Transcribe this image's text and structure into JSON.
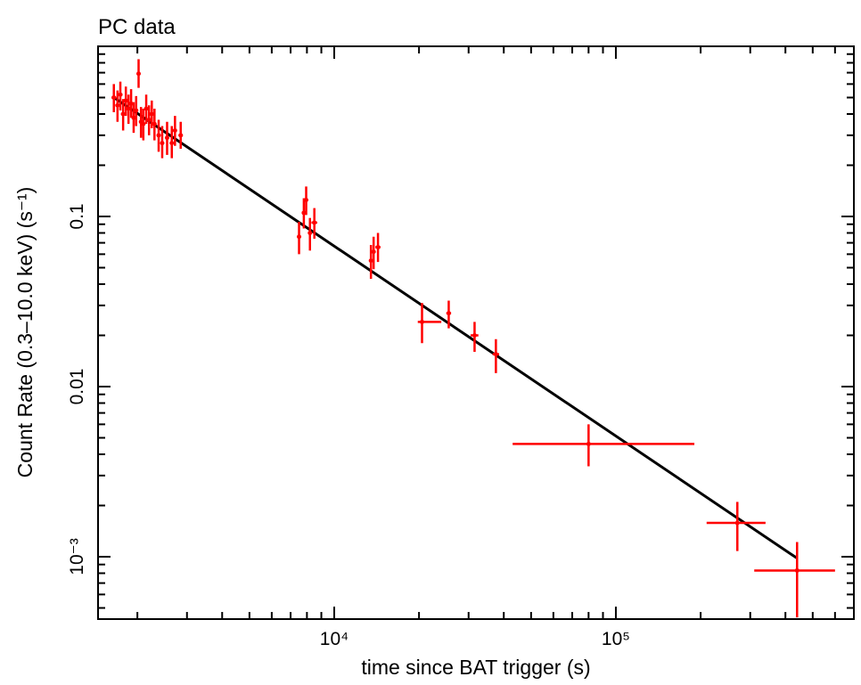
{
  "chart_data": {
    "type": "scatter",
    "title": "PC data",
    "xlabel": "time since BAT trigger (s)",
    "ylabel": "Count Rate (0.3–10.0 keV) (s⁻¹)",
    "x_scale": "log",
    "y_scale": "log",
    "xlim": [
      1450,
      700000
    ],
    "ylim": [
      0.00043,
      1.0
    ],
    "x_tick_labels": [
      {
        "value": 10000,
        "label": "10⁴"
      },
      {
        "value": 100000,
        "label": "10⁵"
      }
    ],
    "y_tick_labels": [
      {
        "value": 0.001,
        "label": "10⁻³"
      },
      {
        "value": 0.01,
        "label": "0.01"
      },
      {
        "value": 0.1,
        "label": "0.1"
      }
    ],
    "grid": false,
    "colors": {
      "data": "#ff0000",
      "model": "#000000",
      "axes": "#000000"
    },
    "series": [
      {
        "values": [
          {
            "x": 1650,
            "y": 0.5,
            "xlo": 1620,
            "xhi": 1680,
            "ylo": 0.41,
            "yhi": 0.6
          },
          {
            "x": 1700,
            "y": 0.45,
            "xlo": 1670,
            "xhi": 1730,
            "ylo": 0.36,
            "yhi": 0.55
          },
          {
            "x": 1740,
            "y": 0.52,
            "xlo": 1710,
            "xhi": 1770,
            "ylo": 0.42,
            "yhi": 0.62
          },
          {
            "x": 1780,
            "y": 0.4,
            "xlo": 1750,
            "xhi": 1810,
            "ylo": 0.32,
            "yhi": 0.49
          },
          {
            "x": 1820,
            "y": 0.48,
            "xlo": 1790,
            "xhi": 1850,
            "ylo": 0.39,
            "yhi": 0.58
          },
          {
            "x": 1860,
            "y": 0.43,
            "xlo": 1830,
            "xhi": 1890,
            "ylo": 0.35,
            "yhi": 0.52
          },
          {
            "x": 1900,
            "y": 0.46,
            "xlo": 1870,
            "xhi": 1930,
            "ylo": 0.38,
            "yhi": 0.56
          },
          {
            "x": 1940,
            "y": 0.38,
            "xlo": 1910,
            "xhi": 1970,
            "ylo": 0.31,
            "yhi": 0.47
          },
          {
            "x": 1980,
            "y": 0.42,
            "xlo": 1950,
            "xhi": 2010,
            "ylo": 0.34,
            "yhi": 0.51
          },
          {
            "x": 2020,
            "y": 0.69,
            "xlo": 1995,
            "xhi": 2045,
            "ylo": 0.57,
            "yhi": 0.84
          },
          {
            "x": 2060,
            "y": 0.36,
            "xlo": 2035,
            "xhi": 2085,
            "ylo": 0.29,
            "yhi": 0.44
          },
          {
            "x": 2100,
            "y": 0.35,
            "xlo": 2075,
            "xhi": 2125,
            "ylo": 0.28,
            "yhi": 0.43
          },
          {
            "x": 2150,
            "y": 0.43,
            "xlo": 2120,
            "xhi": 2180,
            "ylo": 0.35,
            "yhi": 0.52
          },
          {
            "x": 2200,
            "y": 0.37,
            "xlo": 2170,
            "xhi": 2230,
            "ylo": 0.3,
            "yhi": 0.45
          },
          {
            "x": 2250,
            "y": 0.4,
            "xlo": 2220,
            "xhi": 2280,
            "ylo": 0.33,
            "yhi": 0.48
          },
          {
            "x": 2300,
            "y": 0.35,
            "xlo": 2270,
            "xhi": 2330,
            "ylo": 0.28,
            "yhi": 0.43
          },
          {
            "x": 2380,
            "y": 0.3,
            "xlo": 2350,
            "xhi": 2410,
            "ylo": 0.24,
            "yhi": 0.37
          },
          {
            "x": 2450,
            "y": 0.27,
            "xlo": 2420,
            "xhi": 2480,
            "ylo": 0.22,
            "yhi": 0.34
          },
          {
            "x": 2550,
            "y": 0.29,
            "xlo": 2520,
            "xhi": 2580,
            "ylo": 0.23,
            "yhi": 0.36
          },
          {
            "x": 2650,
            "y": 0.27,
            "xlo": 2620,
            "xhi": 2680,
            "ylo": 0.22,
            "yhi": 0.34
          },
          {
            "x": 2720,
            "y": 0.32,
            "xlo": 2690,
            "xhi": 2750,
            "ylo": 0.26,
            "yhi": 0.39
          },
          {
            "x": 2850,
            "y": 0.3,
            "xlo": 2800,
            "xhi": 2900,
            "ylo": 0.25,
            "yhi": 0.36
          },
          {
            "x": 7500,
            "y": 0.076,
            "xlo": 7400,
            "xhi": 7600,
            "ylo": 0.06,
            "yhi": 0.093
          },
          {
            "x": 7800,
            "y": 0.105,
            "xlo": 7700,
            "xhi": 7900,
            "ylo": 0.085,
            "yhi": 0.128
          },
          {
            "x": 7950,
            "y": 0.125,
            "xlo": 7850,
            "xhi": 8050,
            "ylo": 0.102,
            "yhi": 0.15
          },
          {
            "x": 8200,
            "y": 0.08,
            "xlo": 8100,
            "xhi": 8300,
            "ylo": 0.063,
            "yhi": 0.098
          },
          {
            "x": 8500,
            "y": 0.092,
            "xlo": 8300,
            "xhi": 8700,
            "ylo": 0.074,
            "yhi": 0.112
          },
          {
            "x": 13500,
            "y": 0.055,
            "xlo": 13300,
            "xhi": 13700,
            "ylo": 0.043,
            "yhi": 0.068
          },
          {
            "x": 13800,
            "y": 0.062,
            "xlo": 13600,
            "xhi": 14000,
            "ylo": 0.049,
            "yhi": 0.076
          },
          {
            "x": 14300,
            "y": 0.066,
            "xlo": 14000,
            "xhi": 14600,
            "ylo": 0.054,
            "yhi": 0.08
          },
          {
            "x": 20500,
            "y": 0.024,
            "xlo": 19800,
            "xhi": 24000,
            "ylo": 0.018,
            "yhi": 0.031
          },
          {
            "x": 25500,
            "y": 0.027,
            "xlo": 25000,
            "xhi": 26000,
            "ylo": 0.022,
            "yhi": 0.032
          },
          {
            "x": 31500,
            "y": 0.02,
            "xlo": 30500,
            "xhi": 32500,
            "ylo": 0.016,
            "yhi": 0.024
          },
          {
            "x": 37500,
            "y": 0.0155,
            "xlo": 36500,
            "xhi": 38500,
            "ylo": 0.012,
            "yhi": 0.019
          },
          {
            "x": 80000,
            "y": 0.0046,
            "xlo": 43000,
            "xhi": 190000,
            "ylo": 0.0034,
            "yhi": 0.006
          },
          {
            "x": 270000,
            "y": 0.00158,
            "xlo": 210000,
            "xhi": 340000,
            "ylo": 0.00108,
            "yhi": 0.0021
          },
          {
            "x": 440000,
            "y": 0.00083,
            "xlo": 310000,
            "xhi": 600000,
            "ylo": 0.00044,
            "yhi": 0.00122
          }
        ]
      }
    ],
    "model_line": [
      {
        "x": 1650,
        "y": 0.5
      },
      {
        "x": 440000,
        "y": 0.00098
      }
    ]
  }
}
